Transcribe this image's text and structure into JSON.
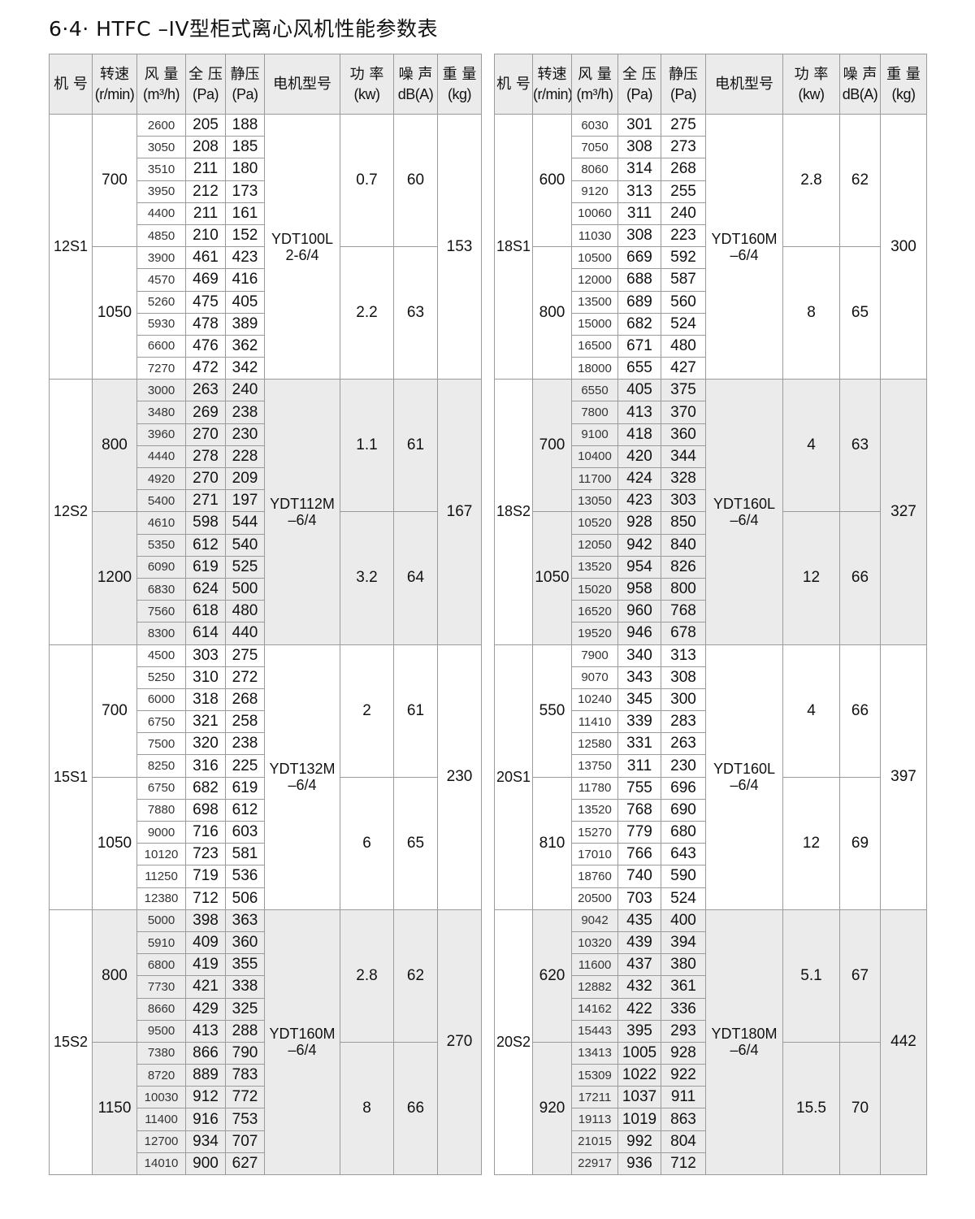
{
  "title": "6·4· HTFC –IV型柜式离心风机性能参数表",
  "headers": [
    {
      "l1": "机  号",
      "l2": ""
    },
    {
      "l1": "转速",
      "l2": "(r/min)"
    },
    {
      "l1": "风 量",
      "l2": "(m³/h)"
    },
    {
      "l1": "全 压",
      "l2": "(Pa)"
    },
    {
      "l1": "静压",
      "l2": "(Pa)"
    },
    {
      "l1": "电机型号",
      "l2": ""
    },
    {
      "l1": "功 率",
      "l2": "(kw)"
    },
    {
      "l1": "噪 声",
      "l2": "dB(A)"
    },
    {
      "l1": "重 量",
      "l2": "(kg)"
    }
  ],
  "shade_color": "#ebebeb",
  "tables": [
    {
      "groups": [
        {
          "model": "12S1",
          "motor_line1": "YDT100L",
          "motor_line2": "2-6/4",
          "weight": "153",
          "speeds": [
            {
              "rpm": "700",
              "power": "0.7",
              "noise": "60",
              "rows": [
                [
                  "2600",
                  "205",
                  "188"
                ],
                [
                  "3050",
                  "208",
                  "185"
                ],
                [
                  "3510",
                  "211",
                  "180"
                ],
                [
                  "3950",
                  "212",
                  "173"
                ],
                [
                  "4400",
                  "211",
                  "161"
                ],
                [
                  "4850",
                  "210",
                  "152"
                ]
              ]
            },
            {
              "rpm": "1050",
              "power": "2.2",
              "noise": "63",
              "rows": [
                [
                  "3900",
                  "461",
                  "423"
                ],
                [
                  "4570",
                  "469",
                  "416"
                ],
                [
                  "5260",
                  "475",
                  "405"
                ],
                [
                  "5930",
                  "478",
                  "389"
                ],
                [
                  "6600",
                  "476",
                  "362"
                ],
                [
                  "7270",
                  "472",
                  "342"
                ]
              ]
            }
          ]
        },
        {
          "model": "12S2",
          "motor_line1": "YDT112M",
          "motor_line2": "–6/4",
          "weight": "167",
          "speeds": [
            {
              "rpm": "800",
              "power": "1.1",
              "noise": "61",
              "rows": [
                [
                  "3000",
                  "263",
                  "240"
                ],
                [
                  "3480",
                  "269",
                  "238"
                ],
                [
                  "3960",
                  "270",
                  "230"
                ],
                [
                  "4440",
                  "278",
                  "228"
                ],
                [
                  "4920",
                  "270",
                  "209"
                ],
                [
                  "5400",
                  "271",
                  "197"
                ]
              ]
            },
            {
              "rpm": "1200",
              "power": "3.2",
              "noise": "64",
              "rows": [
                [
                  "4610",
                  "598",
                  "544"
                ],
                [
                  "5350",
                  "612",
                  "540"
                ],
                [
                  "6090",
                  "619",
                  "525"
                ],
                [
                  "6830",
                  "624",
                  "500"
                ],
                [
                  "7560",
                  "618",
                  "480"
                ],
                [
                  "8300",
                  "614",
                  "440"
                ]
              ]
            }
          ]
        },
        {
          "model": "15S1",
          "motor_line1": "YDT132M",
          "motor_line2": "–6/4",
          "weight": "230",
          "speeds": [
            {
              "rpm": "700",
              "power": "2",
              "noise": "61",
              "rows": [
                [
                  "4500",
                  "303",
                  "275"
                ],
                [
                  "5250",
                  "310",
                  "272"
                ],
                [
                  "6000",
                  "318",
                  "268"
                ],
                [
                  "6750",
                  "321",
                  "258"
                ],
                [
                  "7500",
                  "320",
                  "238"
                ],
                [
                  "8250",
                  "316",
                  "225"
                ]
              ]
            },
            {
              "rpm": "1050",
              "power": "6",
              "noise": "65",
              "rows": [
                [
                  "6750",
                  "682",
                  "619"
                ],
                [
                  "7880",
                  "698",
                  "612"
                ],
                [
                  "9000",
                  "716",
                  "603"
                ],
                [
                  "10120",
                  "723",
                  "581"
                ],
                [
                  "11250",
                  "719",
                  "536"
                ],
                [
                  "12380",
                  "712",
                  "506"
                ]
              ]
            }
          ]
        },
        {
          "model": "15S2",
          "motor_line1": "YDT160M",
          "motor_line2": "–6/4",
          "weight": "270",
          "speeds": [
            {
              "rpm": "800",
              "power": "2.8",
              "noise": "62",
              "rows": [
                [
                  "5000",
                  "398",
                  "363"
                ],
                [
                  "5910",
                  "409",
                  "360"
                ],
                [
                  "6800",
                  "419",
                  "355"
                ],
                [
                  "7730",
                  "421",
                  "338"
                ],
                [
                  "8660",
                  "429",
                  "325"
                ],
                [
                  "9500",
                  "413",
                  "288"
                ]
              ]
            },
            {
              "rpm": "1150",
              "power": "8",
              "noise": "66",
              "rows": [
                [
                  "7380",
                  "866",
                  "790"
                ],
                [
                  "8720",
                  "889",
                  "783"
                ],
                [
                  "10030",
                  "912",
                  "772"
                ],
                [
                  "11400",
                  "916",
                  "753"
                ],
                [
                  "12700",
                  "934",
                  "707"
                ],
                [
                  "14010",
                  "900",
                  "627"
                ]
              ]
            }
          ]
        }
      ]
    },
    {
      "groups": [
        {
          "model": "18S1",
          "motor_line1": "YDT160M",
          "motor_line2": "–6/4",
          "weight": "300",
          "speeds": [
            {
              "rpm": "600",
              "power": "2.8",
              "noise": "62",
              "rows": [
                [
                  "6030",
                  "301",
                  "275"
                ],
                [
                  "7050",
                  "308",
                  "273"
                ],
                [
                  "8060",
                  "314",
                  "268"
                ],
                [
                  "9120",
                  "313",
                  "255"
                ],
                [
                  "10060",
                  "311",
                  "240"
                ],
                [
                  "11030",
                  "308",
                  "223"
                ]
              ]
            },
            {
              "rpm": "800",
              "power": "8",
              "noise": "65",
              "rows": [
                [
                  "10500",
                  "669",
                  "592"
                ],
                [
                  "12000",
                  "688",
                  "587"
                ],
                [
                  "13500",
                  "689",
                  "560"
                ],
                [
                  "15000",
                  "682",
                  "524"
                ],
                [
                  "16500",
                  "671",
                  "480"
                ],
                [
                  "18000",
                  "655",
                  "427"
                ]
              ]
            }
          ]
        },
        {
          "model": "18S2",
          "motor_line1": "YDT160L",
          "motor_line2": "–6/4",
          "weight": "327",
          "speeds": [
            {
              "rpm": "700",
              "power": "4",
              "noise": "63",
              "rows": [
                [
                  "6550",
                  "405",
                  "375"
                ],
                [
                  "7800",
                  "413",
                  "370"
                ],
                [
                  "9100",
                  "418",
                  "360"
                ],
                [
                  "10400",
                  "420",
                  "344"
                ],
                [
                  "11700",
                  "424",
                  "328"
                ],
                [
                  "13050",
                  "423",
                  "303"
                ]
              ]
            },
            {
              "rpm": "1050",
              "power": "12",
              "noise": "66",
              "rows": [
                [
                  "10520",
                  "928",
                  "850"
                ],
                [
                  "12050",
                  "942",
                  "840"
                ],
                [
                  "13520",
                  "954",
                  "826"
                ],
                [
                  "15020",
                  "958",
                  "800"
                ],
                [
                  "16520",
                  "960",
                  "768"
                ],
                [
                  "19520",
                  "946",
                  "678"
                ]
              ]
            }
          ]
        },
        {
          "model": "20S1",
          "motor_line1": "YDT160L",
          "motor_line2": "–6/4",
          "weight": "397",
          "speeds": [
            {
              "rpm": "550",
              "power": "4",
              "noise": "66",
              "rows": [
                [
                  "7900",
                  "340",
                  "313"
                ],
                [
                  "9070",
                  "343",
                  "308"
                ],
                [
                  "10240",
                  "345",
                  "300"
                ],
                [
                  "11410",
                  "339",
                  "283"
                ],
                [
                  "12580",
                  "331",
                  "263"
                ],
                [
                  "13750",
                  "311",
                  "230"
                ]
              ]
            },
            {
              "rpm": "810",
              "power": "12",
              "noise": "69",
              "rows": [
                [
                  "11780",
                  "755",
                  "696"
                ],
                [
                  "13520",
                  "768",
                  "690"
                ],
                [
                  "15270",
                  "779",
                  "680"
                ],
                [
                  "17010",
                  "766",
                  "643"
                ],
                [
                  "18760",
                  "740",
                  "590"
                ],
                [
                  "20500",
                  "703",
                  "524"
                ]
              ]
            }
          ]
        },
        {
          "model": "20S2",
          "motor_line1": "YDT180M",
          "motor_line2": "–6/4",
          "weight": "442",
          "speeds": [
            {
              "rpm": "620",
              "power": "5.1",
              "noise": "67",
              "rows": [
                [
                  "9042",
                  "435",
                  "400"
                ],
                [
                  "10320",
                  "439",
                  "394"
                ],
                [
                  "11600",
                  "437",
                  "380"
                ],
                [
                  "12882",
                  "432",
                  "361"
                ],
                [
                  "14162",
                  "422",
                  "336"
                ],
                [
                  "15443",
                  "395",
                  "293"
                ]
              ]
            },
            {
              "rpm": "920",
              "power": "15.5",
              "noise": "70",
              "rows": [
                [
                  "13413",
                  "1005",
                  "928"
                ],
                [
                  "15309",
                  "1022",
                  "922"
                ],
                [
                  "17211",
                  "1037",
                  "911"
                ],
                [
                  "19113",
                  "1019",
                  "863"
                ],
                [
                  "21015",
                  "992",
                  "804"
                ],
                [
                  "22917",
                  "936",
                  "712"
                ]
              ]
            }
          ]
        }
      ]
    }
  ]
}
